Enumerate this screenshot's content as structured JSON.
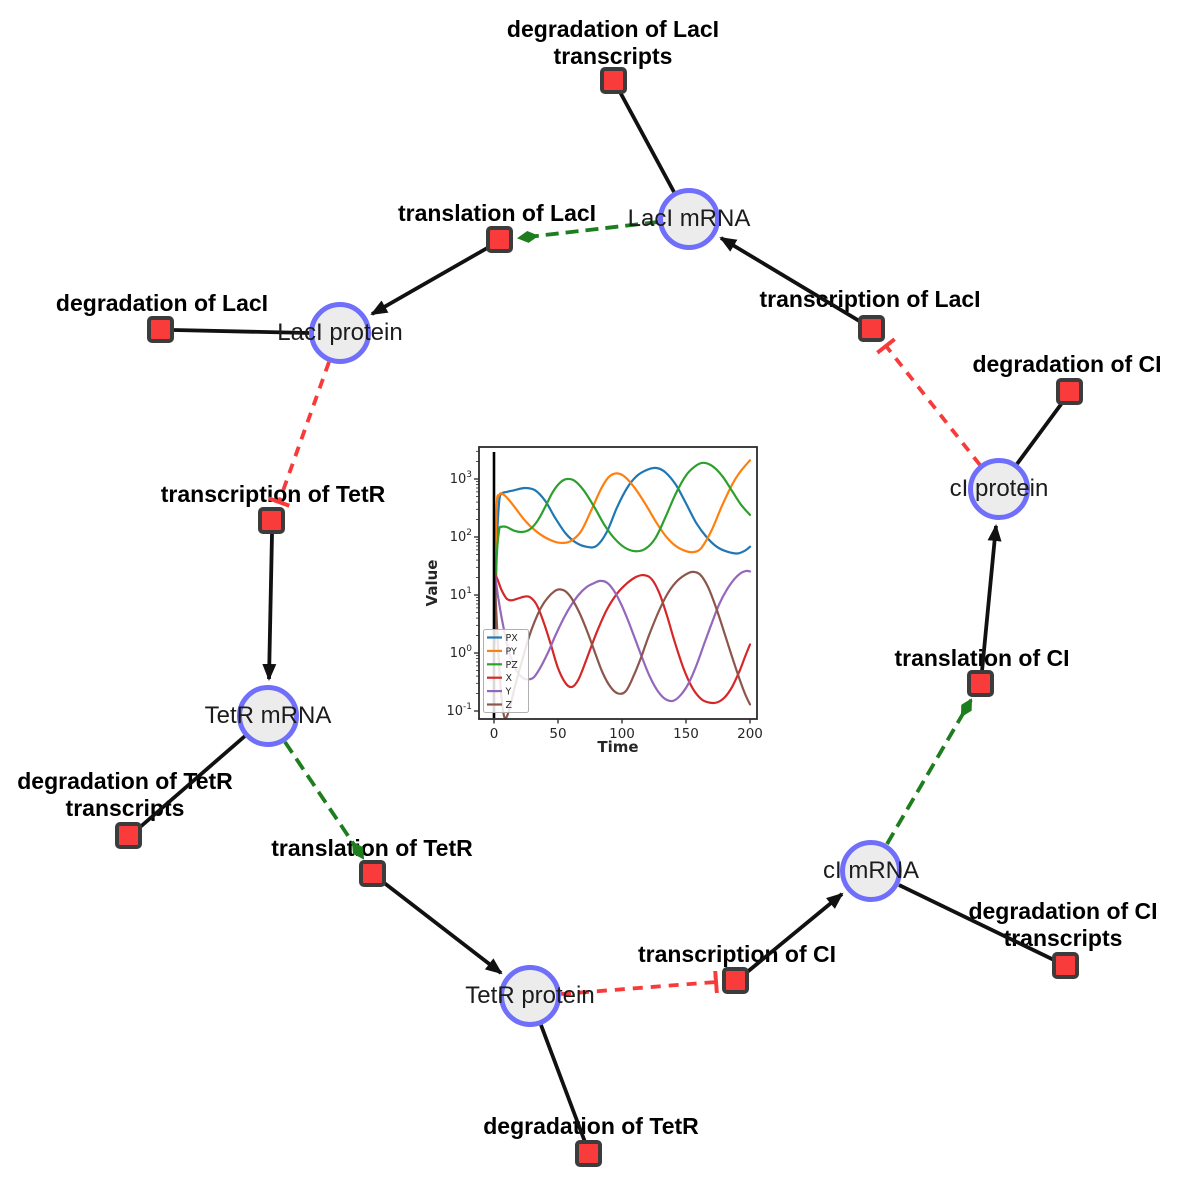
{
  "diagram": {
    "title": "repressilator gene regulatory network",
    "colors": {
      "species_fill": "#ececec",
      "species_border": "#6f6ffb",
      "reaction_fill": "#f93b3b",
      "reaction_border": "#3c3c3c",
      "edge_black": "#111111",
      "edge_modifier_green": "#1e7d1e",
      "edge_inhibition_red": "#f83a3a"
    },
    "species": [
      {
        "id": "laci-mrna",
        "label": "LacI mRNA"
      },
      {
        "id": "laci-protein",
        "label": "LacI protein"
      },
      {
        "id": "tetr-mrna",
        "label": "TetR mRNA"
      },
      {
        "id": "tetr-protein",
        "label": "TetR protein"
      },
      {
        "id": "ci-mrna",
        "label": "cI mRNA"
      },
      {
        "id": "ci-protein",
        "label": "cI protein"
      }
    ],
    "reactions": [
      {
        "id": "deg-laci-transcripts",
        "label": "degradation of LacI transcripts",
        "lines": [
          "degradation of LacI",
          "transcripts"
        ]
      },
      {
        "id": "translation-laci",
        "label": "translation of LacI",
        "lines": [
          "translation of LacI"
        ]
      },
      {
        "id": "transcription-laci",
        "label": "transcription of LacI",
        "lines": [
          "transcription of LacI"
        ]
      },
      {
        "id": "deg-laci",
        "label": "degradation of LacI",
        "lines": [
          "degradation of LacI"
        ]
      },
      {
        "id": "transcription-tetr",
        "label": "transcription of TetR",
        "lines": [
          "transcription of TetR"
        ]
      },
      {
        "id": "deg-tetr-transcripts",
        "label": "degradation of TetR transcripts",
        "lines": [
          "degradation of TetR",
          "transcripts"
        ]
      },
      {
        "id": "translation-tetr",
        "label": "translation of TetR",
        "lines": [
          "translation of TetR"
        ]
      },
      {
        "id": "deg-tetr",
        "label": "degradation of TetR",
        "lines": [
          "degradation of TetR"
        ]
      },
      {
        "id": "transcription-ci",
        "label": "transcription of CI",
        "lines": [
          "transcription of CI"
        ]
      },
      {
        "id": "deg-ci-transcripts",
        "label": "degradation of CI transcripts",
        "lines": [
          "degradation of CI",
          "transcripts"
        ]
      },
      {
        "id": "translation-ci",
        "label": "translation of CI",
        "lines": [
          "translation of CI"
        ]
      },
      {
        "id": "deg-ci",
        "label": "degradation of CI",
        "lines": [
          "degradation of CI"
        ]
      }
    ],
    "edges": [
      {
        "from": "laci-mrna",
        "to": "deg-laci-transcripts",
        "type": "consumption"
      },
      {
        "from": "laci-mrna",
        "to": "translation-laci",
        "type": "modifier"
      },
      {
        "from": "transcription-laci",
        "to": "laci-mrna",
        "type": "production"
      },
      {
        "from": "translation-laci",
        "to": "laci-protein",
        "type": "production"
      },
      {
        "from": "laci-protein",
        "to": "deg-laci",
        "type": "consumption"
      },
      {
        "from": "laci-protein",
        "to": "transcription-tetr",
        "type": "inhibition"
      },
      {
        "from": "transcription-tetr",
        "to": "tetr-mrna",
        "type": "production"
      },
      {
        "from": "tetr-mrna",
        "to": "deg-tetr-transcripts",
        "type": "consumption"
      },
      {
        "from": "tetr-mrna",
        "to": "translation-tetr",
        "type": "modifier"
      },
      {
        "from": "translation-tetr",
        "to": "tetr-protein",
        "type": "production"
      },
      {
        "from": "tetr-protein",
        "to": "deg-tetr",
        "type": "consumption"
      },
      {
        "from": "tetr-protein",
        "to": "transcription-ci",
        "type": "inhibition"
      },
      {
        "from": "transcription-ci",
        "to": "ci-mrna",
        "type": "production"
      },
      {
        "from": "ci-mrna",
        "to": "deg-ci-transcripts",
        "type": "consumption"
      },
      {
        "from": "ci-mrna",
        "to": "translation-ci",
        "type": "modifier"
      },
      {
        "from": "translation-ci",
        "to": "ci-protein",
        "type": "production"
      },
      {
        "from": "ci-protein",
        "to": "deg-ci",
        "type": "consumption"
      },
      {
        "from": "ci-protein",
        "to": "transcription-laci",
        "type": "inhibition"
      }
    ]
  },
  "chart_data": {
    "type": "line",
    "title": "",
    "xlabel": "Time",
    "ylabel": "Value",
    "xlim": [
      -12,
      206
    ],
    "x_ticks": [
      0,
      50,
      100,
      150,
      200
    ],
    "yscale": "log",
    "ylim": [
      0.1,
      3700
    ],
    "y_tick_exponents": [
      -1,
      0,
      1,
      2,
      3
    ],
    "legend_position": "lower left",
    "grid": false,
    "initial_condition_line_x": 0,
    "series": [
      {
        "name": "PX",
        "color": "#1f77b4",
        "points": [
          [
            0.5,
            2
          ],
          [
            2,
            60
          ],
          [
            4,
            400
          ],
          [
            6,
            560
          ],
          [
            10,
            600
          ],
          [
            16,
            640
          ],
          [
            24,
            700
          ],
          [
            32,
            640
          ],
          [
            40,
            420
          ],
          [
            48,
            210
          ],
          [
            56,
            115
          ],
          [
            64,
            80
          ],
          [
            72,
            68
          ],
          [
            80,
            70
          ],
          [
            88,
            120
          ],
          [
            96,
            320
          ],
          [
            104,
            700
          ],
          [
            112,
            1150
          ],
          [
            120,
            1450
          ],
          [
            127,
            1550
          ],
          [
            134,
            1300
          ],
          [
            142,
            800
          ],
          [
            150,
            380
          ],
          [
            158,
            175
          ],
          [
            166,
            100
          ],
          [
            174,
            68
          ],
          [
            182,
            56
          ],
          [
            190,
            52
          ],
          [
            196,
            58
          ],
          [
            200,
            68
          ]
        ]
      },
      {
        "name": "PY",
        "color": "#ff7f0e",
        "points": [
          [
            0.5,
            3
          ],
          [
            2,
            300
          ],
          [
            4,
            520
          ],
          [
            6,
            560
          ],
          [
            10,
            480
          ],
          [
            16,
            330
          ],
          [
            24,
            195
          ],
          [
            32,
            130
          ],
          [
            40,
            98
          ],
          [
            48,
            82
          ],
          [
            54,
            79
          ],
          [
            60,
            85
          ],
          [
            68,
            125
          ],
          [
            76,
            290
          ],
          [
            84,
            700
          ],
          [
            90,
            1100
          ],
          [
            96,
            1250
          ],
          [
            102,
            1100
          ],
          [
            110,
            700
          ],
          [
            118,
            380
          ],
          [
            126,
            190
          ],
          [
            134,
            105
          ],
          [
            142,
            70
          ],
          [
            150,
            57
          ],
          [
            156,
            55
          ],
          [
            162,
            65
          ],
          [
            170,
            130
          ],
          [
            178,
            340
          ],
          [
            186,
            800
          ],
          [
            192,
            1300
          ],
          [
            200,
            2100
          ]
        ]
      },
      {
        "name": "PZ",
        "color": "#2ca02c",
        "points": [
          [
            0.5,
            1.5
          ],
          [
            2,
            40
          ],
          [
            4,
            130
          ],
          [
            6,
            150
          ],
          [
            10,
            148
          ],
          [
            16,
            128
          ],
          [
            22,
            122
          ],
          [
            28,
            135
          ],
          [
            34,
            190
          ],
          [
            40,
            330
          ],
          [
            46,
            600
          ],
          [
            52,
            880
          ],
          [
            57,
            1000
          ],
          [
            63,
            930
          ],
          [
            70,
            640
          ],
          [
            78,
            340
          ],
          [
            86,
            165
          ],
          [
            94,
            95
          ],
          [
            102,
            66
          ],
          [
            110,
            57
          ],
          [
            118,
            62
          ],
          [
            126,
            95
          ],
          [
            134,
            220
          ],
          [
            142,
            560
          ],
          [
            150,
            1150
          ],
          [
            157,
            1650
          ],
          [
            163,
            1900
          ],
          [
            170,
            1700
          ],
          [
            178,
            1150
          ],
          [
            186,
            620
          ],
          [
            193,
            360
          ],
          [
            200,
            240
          ]
        ]
      },
      {
        "name": "X",
        "color": "#d62728",
        "points": [
          [
            0.5,
            24
          ],
          [
            3,
            18
          ],
          [
            6,
            12
          ],
          [
            10,
            8.6
          ],
          [
            14,
            8.1
          ],
          [
            18,
            8.6
          ],
          [
            24,
            9.4
          ],
          [
            28,
            9.2
          ],
          [
            33,
            7
          ],
          [
            38,
            3.8
          ],
          [
            44,
            1.5
          ],
          [
            50,
            0.55
          ],
          [
            56,
            0.3
          ],
          [
            61,
            0.26
          ],
          [
            66,
            0.35
          ],
          [
            72,
            0.75
          ],
          [
            80,
            2.2
          ],
          [
            88,
            5.5
          ],
          [
            96,
            10.5
          ],
          [
            104,
            16
          ],
          [
            111,
            20.5
          ],
          [
            117,
            22
          ],
          [
            123,
            19
          ],
          [
            129,
            11
          ],
          [
            135,
            4.5
          ],
          [
            141,
            1.6
          ],
          [
            148,
            0.55
          ],
          [
            155,
            0.25
          ],
          [
            162,
            0.16
          ],
          [
            168,
            0.14
          ],
          [
            174,
            0.14
          ],
          [
            180,
            0.17
          ],
          [
            186,
            0.26
          ],
          [
            192,
            0.5
          ],
          [
            196,
            0.85
          ],
          [
            200,
            1.4
          ]
        ]
      },
      {
        "name": "Y",
        "color": "#9467bd",
        "points": [
          [
            0.5,
            25
          ],
          [
            3,
            10
          ],
          [
            6,
            4
          ],
          [
            10,
            1.5
          ],
          [
            14,
            0.75
          ],
          [
            18,
            0.48
          ],
          [
            22,
            0.38
          ],
          [
            26,
            0.35
          ],
          [
            31,
            0.38
          ],
          [
            36,
            0.55
          ],
          [
            42,
            1.0
          ],
          [
            48,
            2.0
          ],
          [
            54,
            3.8
          ],
          [
            60,
            6.5
          ],
          [
            66,
            10
          ],
          [
            72,
            13.5
          ],
          [
            78,
            16
          ],
          [
            83,
            17.5
          ],
          [
            88,
            16.5
          ],
          [
            93,
            12.5
          ],
          [
            98,
            8
          ],
          [
            104,
            4
          ],
          [
            110,
            1.8
          ],
          [
            116,
            0.8
          ],
          [
            122,
            0.38
          ],
          [
            128,
            0.22
          ],
          [
            134,
            0.16
          ],
          [
            140,
            0.15
          ],
          [
            146,
            0.19
          ],
          [
            152,
            0.3
          ],
          [
            158,
            0.6
          ],
          [
            164,
            1.4
          ],
          [
            170,
            3.2
          ],
          [
            176,
            7
          ],
          [
            182,
            12.5
          ],
          [
            188,
            19
          ],
          [
            193,
            24
          ],
          [
            197,
            26
          ],
          [
            200,
            25.5
          ]
        ]
      },
      {
        "name": "Z",
        "color": "#8c564b",
        "points": [
          [
            0.5,
            22
          ],
          [
            2,
            4
          ],
          [
            4,
            0.6
          ],
          [
            6,
            0.16
          ],
          [
            8,
            0.08
          ],
          [
            10,
            0.08
          ],
          [
            13,
            0.13
          ],
          [
            17,
            0.3
          ],
          [
            22,
            0.75
          ],
          [
            27,
            1.8
          ],
          [
            32,
            3.6
          ],
          [
            37,
            6.2
          ],
          [
            42,
            9
          ],
          [
            47,
            11.5
          ],
          [
            51,
            12.5
          ],
          [
            56,
            11.5
          ],
          [
            61,
            8.5
          ],
          [
            67,
            4.8
          ],
          [
            73,
            2.3
          ],
          [
            79,
            1.0
          ],
          [
            85,
            0.45
          ],
          [
            91,
            0.26
          ],
          [
            97,
            0.2
          ],
          [
            103,
            0.22
          ],
          [
            109,
            0.4
          ],
          [
            115,
            0.85
          ],
          [
            121,
            2.0
          ],
          [
            128,
            4.8
          ],
          [
            135,
            10
          ],
          [
            142,
            16.5
          ],
          [
            149,
            22
          ],
          [
            155,
            25
          ],
          [
            161,
            22.5
          ],
          [
            167,
            14
          ],
          [
            173,
            6.5
          ],
          [
            179,
            2.6
          ],
          [
            185,
            1.0
          ],
          [
            191,
            0.4
          ],
          [
            196,
            0.2
          ],
          [
            200,
            0.13
          ]
        ]
      }
    ]
  }
}
